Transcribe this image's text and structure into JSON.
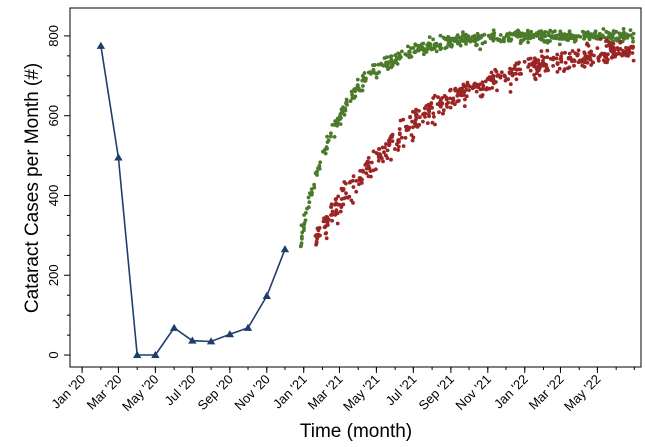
{
  "chart_data": {
    "type": "line+scatter",
    "title": "",
    "xlabel": "Time (month)",
    "ylabel": "Cataract Cases per Month (#)",
    "ylim": [
      -30,
      870
    ],
    "yticks": [
      0,
      200,
      400,
      600,
      800
    ],
    "xlim": [
      "2019-12-12",
      "2022-07-12"
    ],
    "xtick_dates": [
      "2020-01-01",
      "2020-03-01",
      "2020-05-01",
      "2020-07-01",
      "2020-09-01",
      "2020-11-01",
      "2021-01-01",
      "2021-03-01",
      "2021-05-01",
      "2021-07-01",
      "2021-09-01",
      "2021-11-01",
      "2022-01-01",
      "2022-03-01",
      "2022-05-01"
    ],
    "xtick_labels": [
      "Jan '20",
      "Mar '20",
      "May '20",
      "Jul '20",
      "Sep '20",
      "Nov '20",
      "Jan '21",
      "Mar '21",
      "May '21",
      "Jul '21",
      "Sep '21",
      "Nov '21",
      "Jan '22",
      "Mar '22",
      "May '22"
    ],
    "grid": false,
    "legend": "none",
    "series": [
      {
        "kind": "line",
        "color": "#1f3e6b",
        "marker": "triangle",
        "x": [
          "2020-02-01",
          "2020-03-01",
          "2020-04-01",
          "2020-05-01",
          "2020-06-01",
          "2020-07-01",
          "2020-08-01",
          "2020-09-01",
          "2020-10-01",
          "2020-11-01",
          "2020-12-01"
        ],
        "y": [
          775,
          495,
          0,
          0,
          68,
          36,
          34,
          52,
          68,
          148,
          265
        ]
      },
      {
        "kind": "scatter",
        "color": "#4a7a2a",
        "trend": {
          "start": "2020-12-26",
          "end": "2022-06-30",
          "y_start": 285,
          "y_end": 800,
          "rise_days": 70,
          "spread": 17
        },
        "n_points": 540
      },
      {
        "kind": "scatter",
        "color": "#9b2424",
        "trend": {
          "start": "2021-01-20",
          "end": "2022-06-30",
          "y_start": 285,
          "y_end": 800,
          "rise_days": 190,
          "spread": 24
        },
        "n_points": 520
      }
    ]
  }
}
